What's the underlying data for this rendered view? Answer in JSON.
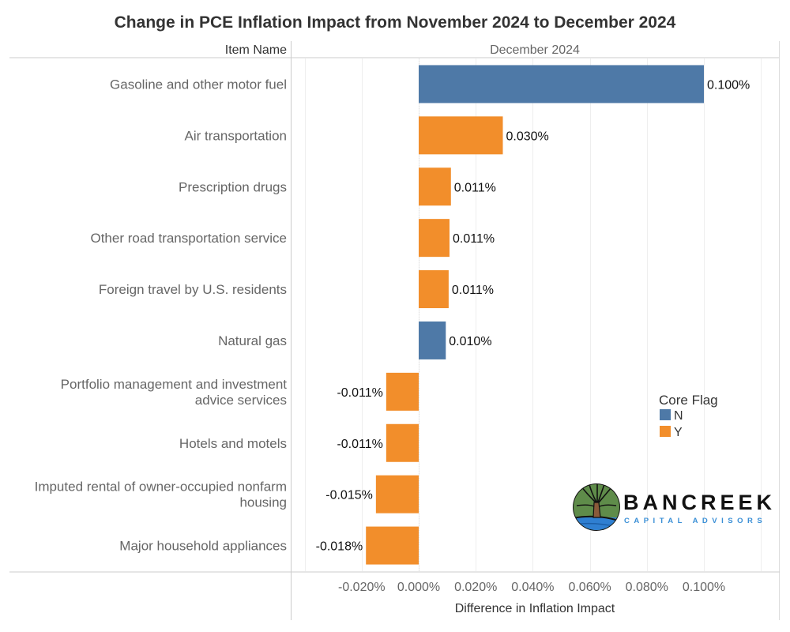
{
  "chart_data": {
    "type": "bar",
    "orientation": "horizontal",
    "title": "Change in PCE Inflation Impact from November 2024 to December 2024",
    "row_header": "Item Name",
    "column_header": "December 2024",
    "xlabel": "Difference in Inflation Impact",
    "ylabel": "",
    "xlim": [
      -0.04,
      0.12
    ],
    "x_ticks": [
      -0.02,
      0.0,
      0.02,
      0.04,
      0.06,
      0.08,
      0.1
    ],
    "x_tick_labels": [
      "-0.020%",
      "0.000%",
      "0.020%",
      "0.040%",
      "0.060%",
      "0.080%",
      "0.100%"
    ],
    "grid": true,
    "value_unit": "%",
    "categories": [
      [
        "Gasoline and other motor fuel"
      ],
      [
        "Air transportation"
      ],
      [
        "Prescription drugs"
      ],
      [
        "Other road transportation service"
      ],
      [
        "Foreign travel by U.S. residents"
      ],
      [
        "Natural gas"
      ],
      [
        "Portfolio management and investment",
        "advice services"
      ],
      [
        "Hotels and motels"
      ],
      [
        "Imputed rental of owner-occupied nonfarm",
        "housing"
      ],
      [
        "Major household appliances"
      ]
    ],
    "values": [
      0.1,
      0.0295,
      0.0113,
      0.0108,
      0.0105,
      0.0095,
      -0.0114,
      -0.0114,
      -0.015,
      -0.0185
    ],
    "value_labels": [
      "0.100%",
      "0.030%",
      "0.011%",
      "0.011%",
      "0.011%",
      "0.010%",
      "-0.011%",
      "-0.011%",
      "-0.015%",
      "-0.018%"
    ],
    "core_flag": [
      "N",
      "Y",
      "Y",
      "Y",
      "Y",
      "N",
      "Y",
      "Y",
      "Y",
      "Y"
    ],
    "legend": {
      "title": "Core Flag",
      "position": "right",
      "entries": [
        {
          "label": "N",
          "color": "#4e79a7"
        },
        {
          "label": "Y",
          "color": "#f28e2b"
        }
      ]
    }
  },
  "colors": {
    "N": "#4e79a7",
    "Y": "#f28e2b"
  },
  "logo": {
    "name": "BANCREEK",
    "subtitle": "CAPITAL ADVISORS"
  }
}
